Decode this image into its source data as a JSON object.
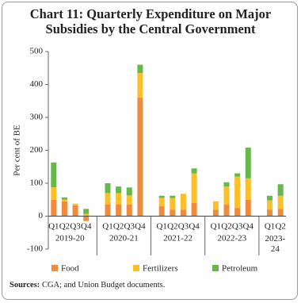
{
  "chart_data": {
    "type": "stacked-bar",
    "title": "Chart 11: Quarterly Expenditure on Major Subsidies by the Central Government",
    "y_label": "Per cent of BE",
    "groups": [
      {
        "label": "2019-20",
        "categories": [
          "Q1",
          "Q2",
          "Q3",
          "Q4"
        ]
      },
      {
        "label": "2020-21",
        "categories": [
          "Q1",
          "Q2",
          "Q3",
          "Q4"
        ]
      },
      {
        "label": "2021-22",
        "categories": [
          "Q1",
          "Q2",
          "Q3",
          "Q4"
        ]
      },
      {
        "label": "2022-23",
        "categories": [
          "Q1",
          "Q2",
          "Q3",
          "Q4"
        ]
      },
      {
        "label": "2023-24",
        "categories": [
          "Q1",
          "Q2"
        ]
      }
    ],
    "series": [
      {
        "name": "Food",
        "color": "#f08a3c",
        "values": [
          50,
          45,
          33,
          -15,
          35,
          35,
          35,
          360,
          30,
          20,
          20,
          40,
          20,
          35,
          25,
          50,
          20,
          22
        ]
      },
      {
        "name": "Fertilizers",
        "color": "#fbbf2a",
        "values": [
          38,
          5,
          5,
          7,
          35,
          35,
          28,
          75,
          25,
          35,
          48,
          90,
          25,
          55,
          95,
          65,
          28,
          40
        ]
      },
      {
        "name": "Petroleum",
        "color": "#66b84a",
        "values": [
          75,
          7,
          0,
          15,
          30,
          20,
          24,
          25,
          7,
          7,
          0,
          15,
          0,
          13,
          10,
          93,
          14,
          35
        ]
      }
    ],
    "ylim": [
      -100,
      500
    ],
    "yticks": [
      -100,
      0,
      100,
      200,
      300,
      400,
      500
    ],
    "legend": "bottom",
    "source_label": "Sources:",
    "source": "CGA; and Union Budget documents."
  }
}
